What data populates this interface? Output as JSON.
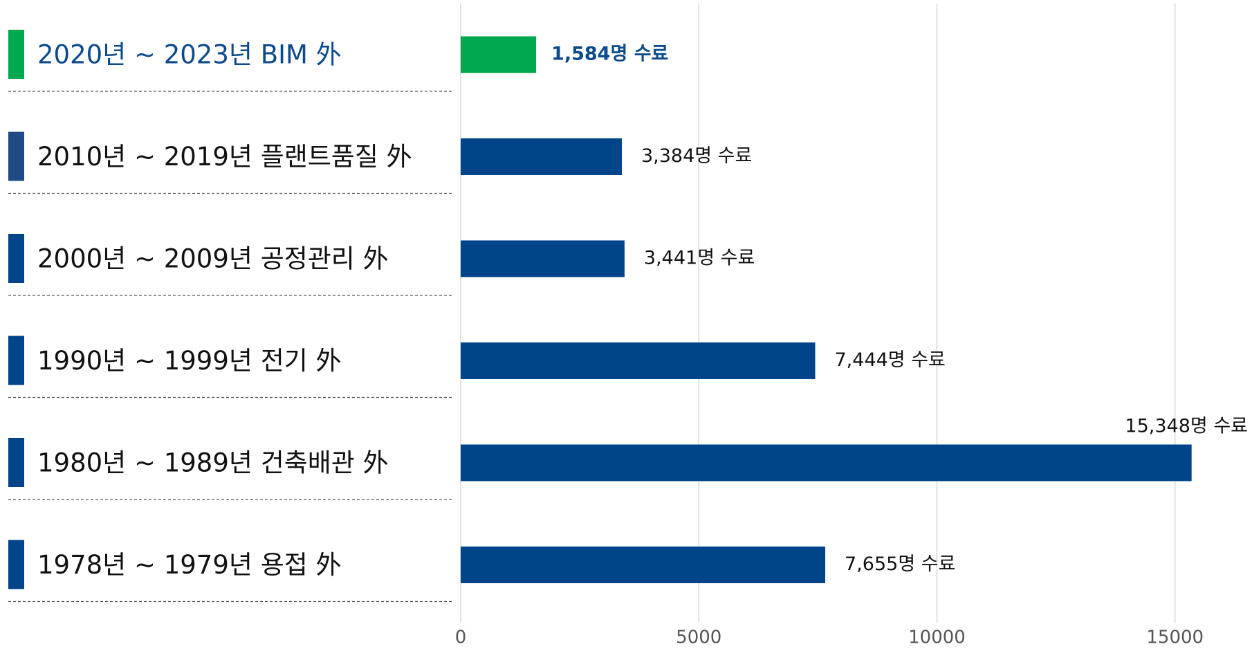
{
  "chart_data": {
    "type": "bar",
    "orientation": "horizontal",
    "categories": [
      "2020년 ~ 2023년 BIM 外",
      "2010년 ~ 2019년 플랜트품질 外",
      "2000년 ~ 2009년 공정관리 外",
      "1990년 ~ 1999년 전기 外",
      "1980년 ~ 1989년 건축배관 外",
      "1978년 ~ 1979년 용접 外"
    ],
    "values": [
      1584,
      3384,
      3441,
      7444,
      15348,
      7655
    ],
    "value_labels": [
      "1,584명 수료",
      "3,384명 수료",
      "3,441명 수료",
      "7,444명 수료",
      "15,348명 수료",
      "7,655명 수료"
    ],
    "colors": [
      "#00a94f",
      "#00458a",
      "#00458a",
      "#00458a",
      "#00458a",
      "#00458a"
    ],
    "marker_colors": [
      "#00a94f",
      "#1f4a85",
      "#00458a",
      "#00458a",
      "#00458a",
      "#00458a"
    ],
    "highlight_index": 0,
    "highlight_text_color": "#0b4a8b",
    "xlim": [
      0,
      16500
    ],
    "xticks": [
      0,
      5000,
      10000,
      15000
    ],
    "grid": true
  }
}
